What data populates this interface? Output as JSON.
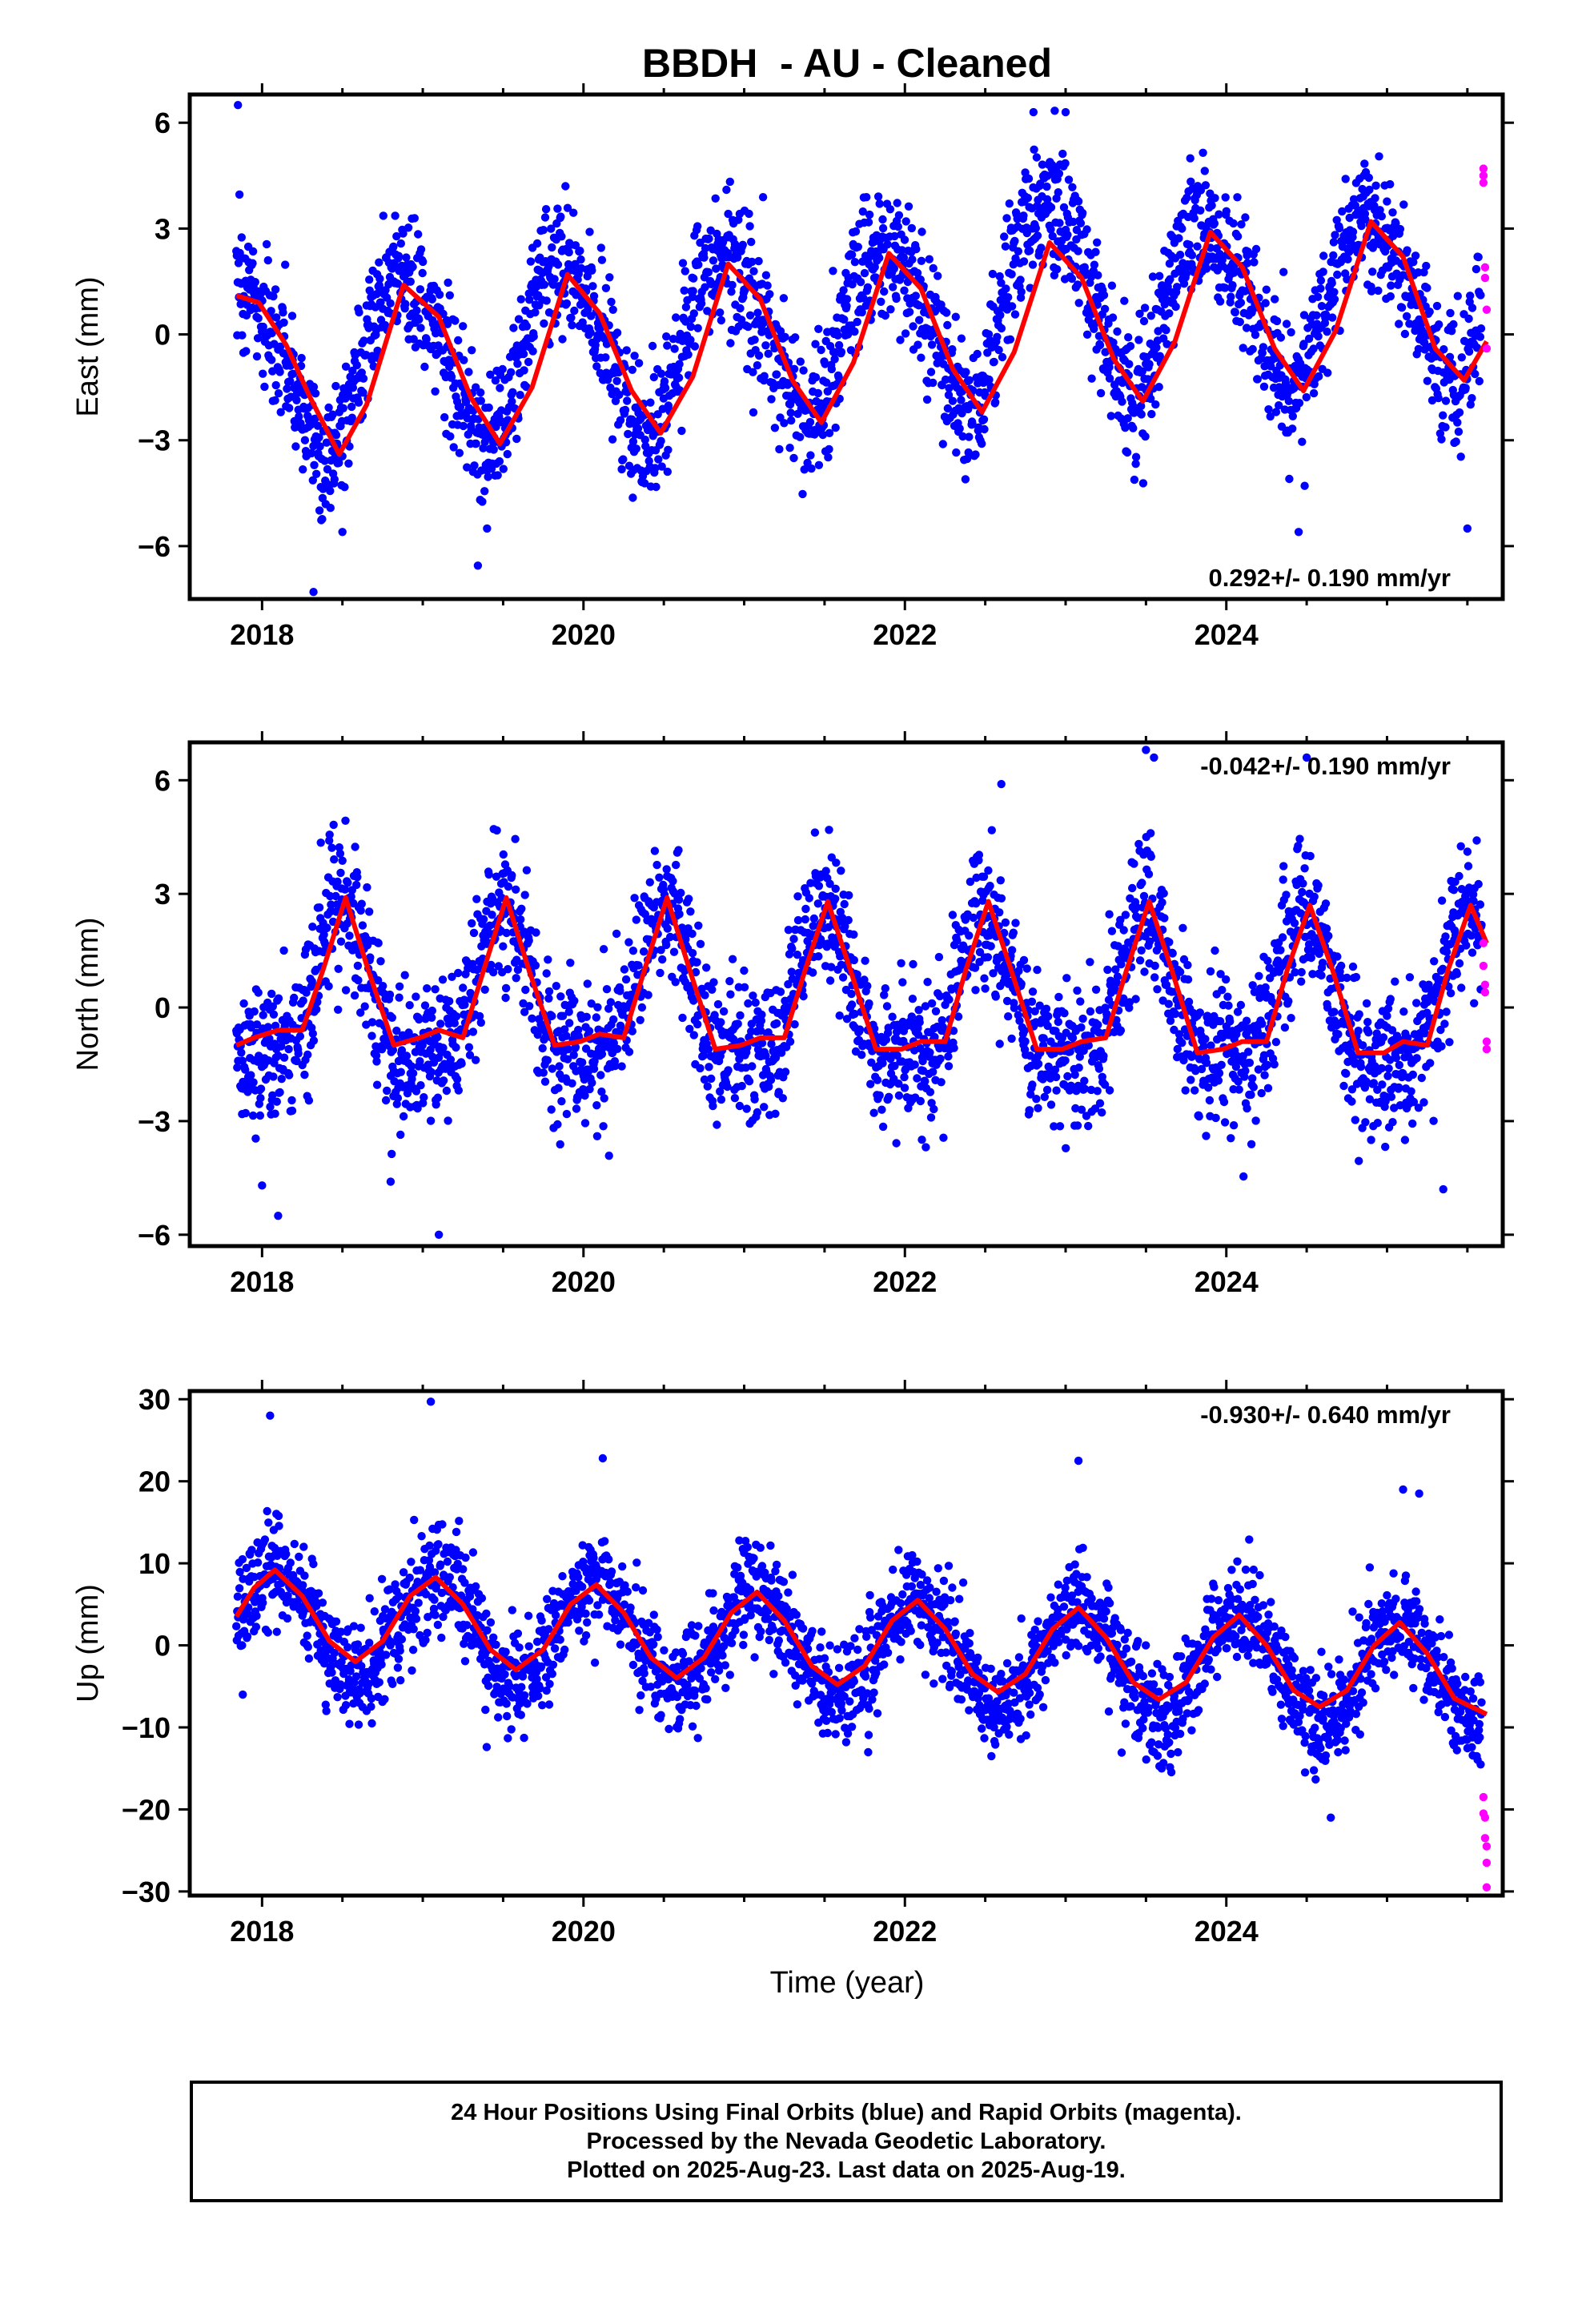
{
  "title": "BBDH  - AU - Cleaned",
  "xlabel": "Time (year)",
  "caption": {
    "line1": "24 Hour Positions Using Final Orbits (blue) and Rapid Orbits (magenta).",
    "line2": "Processed by the Nevada Geodetic Laboratory.",
    "line3": "Plotted on 2025-Aug-23. Last data on 2025-Aug-19."
  },
  "colors": {
    "final": "#0000ff",
    "rapid": "#ff00ff",
    "model": "#ff0000"
  },
  "chart_data": [
    {
      "type": "scatter",
      "component": "East",
      "ylabel": "East (mm)",
      "xlim": [
        2017.55,
        2025.72
      ],
      "ylim": [
        -7.5,
        6.8
      ],
      "xticks": [
        2018,
        2020,
        2022,
        2024
      ],
      "yticks": [
        -6,
        -3,
        0,
        3,
        6
      ],
      "rate_label": "0.292+/- 0.190 mm/yr",
      "rate_label_position": "bottom-right",
      "trend": {
        "rate": 0.292,
        "intercept_2018": -0.9
      },
      "seasonal": {
        "annual_amp": 2.4,
        "annual_peak": 0.88,
        "semiannual_amp": 0.3,
        "semiannual_peak": 0.2
      },
      "scatter_sd": 0.95,
      "extra_signal": [
        {
          "center": 2022.95,
          "width": 0.35,
          "amp": 1.2
        }
      ],
      "model_line": [
        {
          "x": 2017.84,
          "y": 1.1
        },
        {
          "x": 2017.98,
          "y": 0.9
        },
        {
          "x": 2018.15,
          "y": -0.3
        },
        {
          "x": 2018.3,
          "y": -1.8
        },
        {
          "x": 2018.48,
          "y": -3.4
        },
        {
          "x": 2018.65,
          "y": -2.0
        },
        {
          "x": 2018.88,
          "y": 1.4
        },
        {
          "x": 2019.1,
          "y": 0.5
        },
        {
          "x": 2019.3,
          "y": -1.8
        },
        {
          "x": 2019.48,
          "y": -3.1
        },
        {
          "x": 2019.68,
          "y": -1.5
        },
        {
          "x": 2019.9,
          "y": 1.7
        },
        {
          "x": 2020.1,
          "y": 0.6
        },
        {
          "x": 2020.3,
          "y": -1.6
        },
        {
          "x": 2020.48,
          "y": -2.8
        },
        {
          "x": 2020.68,
          "y": -1.2
        },
        {
          "x": 2020.9,
          "y": 2.0
        },
        {
          "x": 2021.1,
          "y": 1.0
        },
        {
          "x": 2021.3,
          "y": -1.3
        },
        {
          "x": 2021.48,
          "y": -2.5
        },
        {
          "x": 2021.68,
          "y": -0.8
        },
        {
          "x": 2021.9,
          "y": 2.3
        },
        {
          "x": 2022.1,
          "y": 1.3
        },
        {
          "x": 2022.3,
          "y": -1.0
        },
        {
          "x": 2022.48,
          "y": -2.2
        },
        {
          "x": 2022.68,
          "y": -0.5
        },
        {
          "x": 2022.9,
          "y": 2.6
        },
        {
          "x": 2023.1,
          "y": 1.6
        },
        {
          "x": 2023.3,
          "y": -0.7
        },
        {
          "x": 2023.48,
          "y": -1.9
        },
        {
          "x": 2023.68,
          "y": -0.2
        },
        {
          "x": 2023.9,
          "y": 2.9
        },
        {
          "x": 2024.1,
          "y": 1.9
        },
        {
          "x": 2024.3,
          "y": -0.4
        },
        {
          "x": 2024.48,
          "y": -1.6
        },
        {
          "x": 2024.68,
          "y": 0.1
        },
        {
          "x": 2024.9,
          "y": 3.2
        },
        {
          "x": 2025.1,
          "y": 2.2
        },
        {
          "x": 2025.3,
          "y": -0.4
        },
        {
          "x": 2025.48,
          "y": -1.3
        },
        {
          "x": 2025.62,
          "y": -0.2
        }
      ],
      "rapid_points": [
        {
          "x": 2025.6,
          "y": 4.7
        },
        {
          "x": 2025.6,
          "y": 4.5
        },
        {
          "x": 2025.6,
          "y": 4.3
        },
        {
          "x": 2025.61,
          "y": 1.9
        },
        {
          "x": 2025.61,
          "y": 1.6
        },
        {
          "x": 2025.62,
          "y": 0.7
        },
        {
          "x": 2025.62,
          "y": -0.4
        }
      ],
      "outliers": [
        {
          "x": 2017.85,
          "y": 6.5
        },
        {
          "x": 2018.32,
          "y": -7.3
        },
        {
          "x": 2022.8,
          "y": 6.3
        },
        {
          "x": 2023.0,
          "y": 6.3
        },
        {
          "x": 2018.5,
          "y": -5.6
        },
        {
          "x": 2019.4,
          "y": -5.5
        },
        {
          "x": 2024.45,
          "y": -5.6
        },
        {
          "x": 2025.5,
          "y": -5.5
        }
      ]
    },
    {
      "type": "scatter",
      "component": "North",
      "ylabel": "North (mm)",
      "xlim": [
        2017.55,
        2025.72
      ],
      "ylim": [
        -6.3,
        7.0
      ],
      "xticks": [
        2018,
        2020,
        2022,
        2024
      ],
      "yticks": [
        -6,
        -3,
        0,
        3,
        6
      ],
      "rate_label": "-0.042+/- 0.190 mm/yr",
      "rate_label_position": "top-right",
      "trend": {
        "rate": -0.042,
        "intercept_2018": 0.3
      },
      "seasonal": {
        "annual_amp": 1.9,
        "annual_peak": 0.5,
        "semiannual_amp": 0.6,
        "semiannual_peak": 0.0
      },
      "scatter_sd": 0.95,
      "extra_signal": [],
      "model_line": [
        {
          "x": 2017.84,
          "y": -1.0
        },
        {
          "x": 2017.95,
          "y": -0.8
        },
        {
          "x": 2018.1,
          "y": -0.6
        },
        {
          "x": 2018.25,
          "y": -0.6
        },
        {
          "x": 2018.38,
          "y": 1.0
        },
        {
          "x": 2018.52,
          "y": 2.9
        },
        {
          "x": 2018.66,
          "y": 1.0
        },
        {
          "x": 2018.82,
          "y": -1.0
        },
        {
          "x": 2018.98,
          "y": -0.8
        },
        {
          "x": 2019.1,
          "y": -0.6
        },
        {
          "x": 2019.25,
          "y": -0.8
        },
        {
          "x": 2019.38,
          "y": 1.0
        },
        {
          "x": 2019.52,
          "y": 2.9
        },
        {
          "x": 2019.66,
          "y": 1.0
        },
        {
          "x": 2019.82,
          "y": -1.0
        },
        {
          "x": 2019.98,
          "y": -0.9
        },
        {
          "x": 2020.1,
          "y": -0.7
        },
        {
          "x": 2020.25,
          "y": -0.8
        },
        {
          "x": 2020.38,
          "y": 1.0
        },
        {
          "x": 2020.52,
          "y": 2.9
        },
        {
          "x": 2020.66,
          "y": 1.0
        },
        {
          "x": 2020.82,
          "y": -1.1
        },
        {
          "x": 2020.98,
          "y": -1.0
        },
        {
          "x": 2021.1,
          "y": -0.8
        },
        {
          "x": 2021.25,
          "y": -0.8
        },
        {
          "x": 2021.38,
          "y": 1.0
        },
        {
          "x": 2021.52,
          "y": 2.8
        },
        {
          "x": 2021.66,
          "y": 1.0
        },
        {
          "x": 2021.82,
          "y": -1.1
        },
        {
          "x": 2021.98,
          "y": -1.1
        },
        {
          "x": 2022.1,
          "y": -0.9
        },
        {
          "x": 2022.25,
          "y": -0.9
        },
        {
          "x": 2022.38,
          "y": 1.0
        },
        {
          "x": 2022.52,
          "y": 2.8
        },
        {
          "x": 2022.66,
          "y": 1.0
        },
        {
          "x": 2022.82,
          "y": -1.1
        },
        {
          "x": 2022.98,
          "y": -1.1
        },
        {
          "x": 2023.1,
          "y": -0.9
        },
        {
          "x": 2023.25,
          "y": -0.8
        },
        {
          "x": 2023.38,
          "y": 1.0
        },
        {
          "x": 2023.52,
          "y": 2.8
        },
        {
          "x": 2023.66,
          "y": 1.0
        },
        {
          "x": 2023.82,
          "y": -1.2
        },
        {
          "x": 2023.98,
          "y": -1.1
        },
        {
          "x": 2024.1,
          "y": -0.9
        },
        {
          "x": 2024.25,
          "y": -0.9
        },
        {
          "x": 2024.38,
          "y": 1.0
        },
        {
          "x": 2024.52,
          "y": 2.7
        },
        {
          "x": 2024.66,
          "y": 1.0
        },
        {
          "x": 2024.82,
          "y": -1.2
        },
        {
          "x": 2024.98,
          "y": -1.2
        },
        {
          "x": 2025.1,
          "y": -0.9
        },
        {
          "x": 2025.25,
          "y": -1.0
        },
        {
          "x": 2025.38,
          "y": 1.0
        },
        {
          "x": 2025.52,
          "y": 2.7
        },
        {
          "x": 2025.62,
          "y": 1.7
        }
      ],
      "rapid_points": [
        {
          "x": 2025.6,
          "y": 1.7
        },
        {
          "x": 2025.6,
          "y": 1.1
        },
        {
          "x": 2025.61,
          "y": 0.6
        },
        {
          "x": 2025.61,
          "y": 0.4
        },
        {
          "x": 2025.62,
          "y": -0.9
        },
        {
          "x": 2025.62,
          "y": -1.1
        }
      ],
      "outliers": [
        {
          "x": 2018.0,
          "y": -4.7
        },
        {
          "x": 2018.1,
          "y": -5.5
        },
        {
          "x": 2019.1,
          "y": -6.0
        },
        {
          "x": 2023.5,
          "y": 6.8
        },
        {
          "x": 2023.55,
          "y": 6.6
        },
        {
          "x": 2024.5,
          "y": 6.6
        },
        {
          "x": 2022.6,
          "y": 5.9
        },
        {
          "x": 2018.8,
          "y": -4.6
        },
        {
          "x": 2025.35,
          "y": -4.8
        }
      ]
    },
    {
      "type": "scatter",
      "component": "Up",
      "ylabel": "Up (mm)",
      "xlim": [
        2017.55,
        2025.72
      ],
      "ylim": [
        -30.5,
        31.0
      ],
      "xticks": [
        2018,
        2020,
        2022,
        2024
      ],
      "yticks": [
        -30,
        -20,
        -10,
        0,
        10,
        20,
        30
      ],
      "rate_label": "-0.930+/- 0.640 mm/yr",
      "rate_label_position": "top-right",
      "trend": {
        "rate": -0.93,
        "intercept_2018": 3.2
      },
      "seasonal": {
        "annual_amp": 6.2,
        "annual_peak": 0.08,
        "semiannual_amp": 0.0,
        "semiannual_peak": 0.0
      },
      "scatter_sd": 3.0,
      "extra_signal": [],
      "model_line": [
        {
          "x": 2017.84,
          "y": 3.5
        },
        {
          "x": 2017.95,
          "y": 7.0
        },
        {
          "x": 2018.08,
          "y": 9.2
        },
        {
          "x": 2018.25,
          "y": 6.0
        },
        {
          "x": 2018.42,
          "y": 0.5
        },
        {
          "x": 2018.58,
          "y": -2.0
        },
        {
          "x": 2018.75,
          "y": 0.5
        },
        {
          "x": 2018.92,
          "y": 6.0
        },
        {
          "x": 2019.08,
          "y": 8.3
        },
        {
          "x": 2019.25,
          "y": 5.0
        },
        {
          "x": 2019.42,
          "y": -0.5
        },
        {
          "x": 2019.58,
          "y": -3.0
        },
        {
          "x": 2019.75,
          "y": -0.5
        },
        {
          "x": 2019.92,
          "y": 5.0
        },
        {
          "x": 2020.08,
          "y": 7.4
        },
        {
          "x": 2020.25,
          "y": 4.0
        },
        {
          "x": 2020.42,
          "y": -1.5
        },
        {
          "x": 2020.58,
          "y": -4.0
        },
        {
          "x": 2020.75,
          "y": -1.5
        },
        {
          "x": 2020.92,
          "y": 4.0
        },
        {
          "x": 2021.08,
          "y": 6.5
        },
        {
          "x": 2021.25,
          "y": 3.0
        },
        {
          "x": 2021.42,
          "y": -2.5
        },
        {
          "x": 2021.58,
          "y": -4.8
        },
        {
          "x": 2021.75,
          "y": -2.5
        },
        {
          "x": 2021.92,
          "y": 3.0
        },
        {
          "x": 2022.08,
          "y": 5.5
        },
        {
          "x": 2022.25,
          "y": 2.0
        },
        {
          "x": 2022.42,
          "y": -3.5
        },
        {
          "x": 2022.58,
          "y": -5.7
        },
        {
          "x": 2022.75,
          "y": -3.5
        },
        {
          "x": 2022.92,
          "y": 2.0
        },
        {
          "x": 2023.08,
          "y": 4.6
        },
        {
          "x": 2023.25,
          "y": 1.0
        },
        {
          "x": 2023.42,
          "y": -4.5
        },
        {
          "x": 2023.58,
          "y": -6.6
        },
        {
          "x": 2023.75,
          "y": -4.5
        },
        {
          "x": 2023.92,
          "y": 1.0
        },
        {
          "x": 2024.08,
          "y": 3.7
        },
        {
          "x": 2024.25,
          "y": 0.0
        },
        {
          "x": 2024.42,
          "y": -5.5
        },
        {
          "x": 2024.58,
          "y": -7.5
        },
        {
          "x": 2024.75,
          "y": -5.5
        },
        {
          "x": 2024.92,
          "y": 0.0
        },
        {
          "x": 2025.08,
          "y": 2.8
        },
        {
          "x": 2025.25,
          "y": -1.0
        },
        {
          "x": 2025.42,
          "y": -6.5
        },
        {
          "x": 2025.62,
          "y": -8.4
        }
      ],
      "rapid_points": [
        {
          "x": 2025.6,
          "y": -18.5
        },
        {
          "x": 2025.6,
          "y": -20.5
        },
        {
          "x": 2025.61,
          "y": -21.0
        },
        {
          "x": 2025.61,
          "y": -23.5
        },
        {
          "x": 2025.62,
          "y": -24.5
        },
        {
          "x": 2025.62,
          "y": -26.5
        },
        {
          "x": 2025.62,
          "y": -29.5
        }
      ],
      "outliers": [
        {
          "x": 2018.05,
          "y": 28.0
        },
        {
          "x": 2019.05,
          "y": 29.7
        },
        {
          "x": 2020.12,
          "y": 22.8
        },
        {
          "x": 2023.08,
          "y": 22.5
        },
        {
          "x": 2025.1,
          "y": 19.0
        },
        {
          "x": 2025.2,
          "y": 18.5
        },
        {
          "x": 2024.65,
          "y": -21.0
        },
        {
          "x": 2017.88,
          "y": -6.0
        },
        {
          "x": 2018.4,
          "y": -8.0
        }
      ]
    }
  ]
}
